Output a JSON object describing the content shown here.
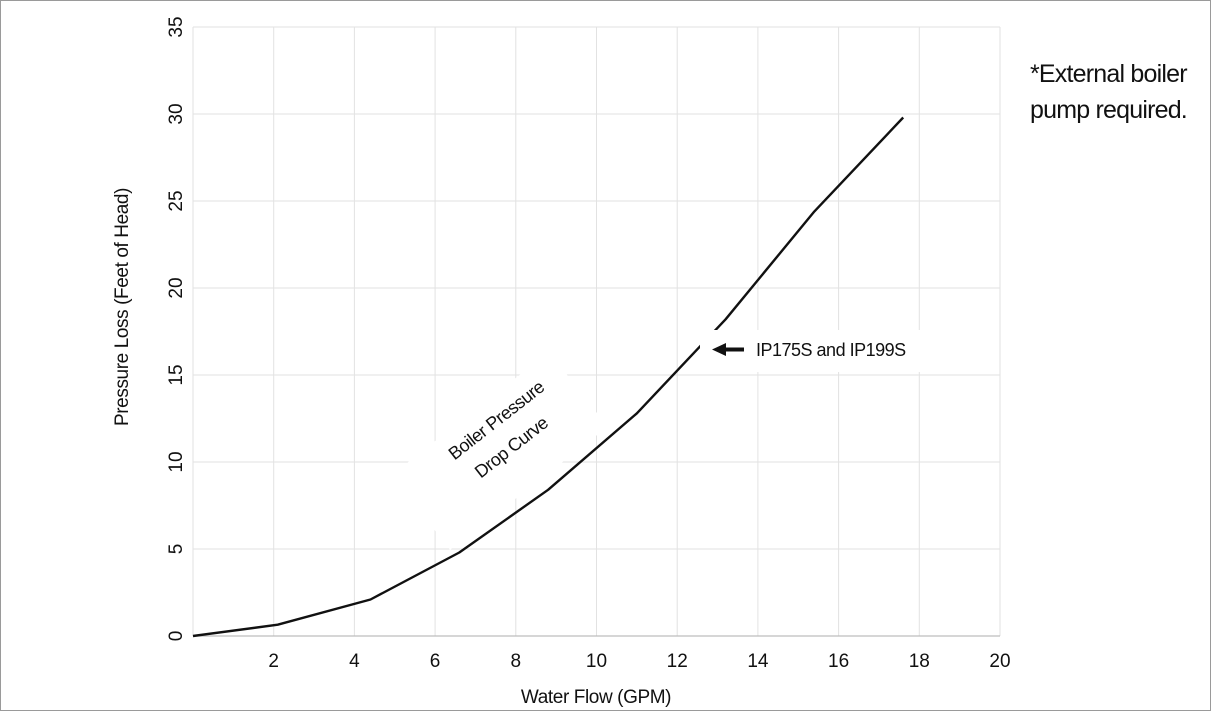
{
  "note": {
    "line1": "*External boiler",
    "line2": "pump required."
  },
  "chart_data": {
    "type": "line",
    "title": "",
    "xlabel": "Water Flow (GPM)",
    "ylabel": "Pressure Loss (Feet of Head)",
    "xlim": [
      0,
      20
    ],
    "ylim": [
      0,
      35
    ],
    "xticks": [
      2,
      4,
      6,
      8,
      10,
      12,
      14,
      16,
      18,
      20
    ],
    "yticks": [
      0,
      5,
      10,
      15,
      20,
      25,
      30,
      35
    ],
    "grid": true,
    "series": [
      {
        "name": "IP175S and IP199S",
        "x": [
          0,
          2.1,
          4.4,
          6.6,
          8.8,
          11.0,
          13.2,
          15.4,
          17.6
        ],
        "y": [
          0,
          0.65,
          2.1,
          4.8,
          8.4,
          12.8,
          18.2,
          24.4,
          29.8
        ]
      }
    ],
    "annotations": {
      "curve_label_line1": "Boiler Pressure",
      "curve_label_line2": "Drop Curve",
      "series_label": "IP175S and IP199S"
    },
    "colors": {
      "line": "#111111",
      "grid": "#e2e2e2",
      "axis": "#bdbdbd"
    }
  }
}
